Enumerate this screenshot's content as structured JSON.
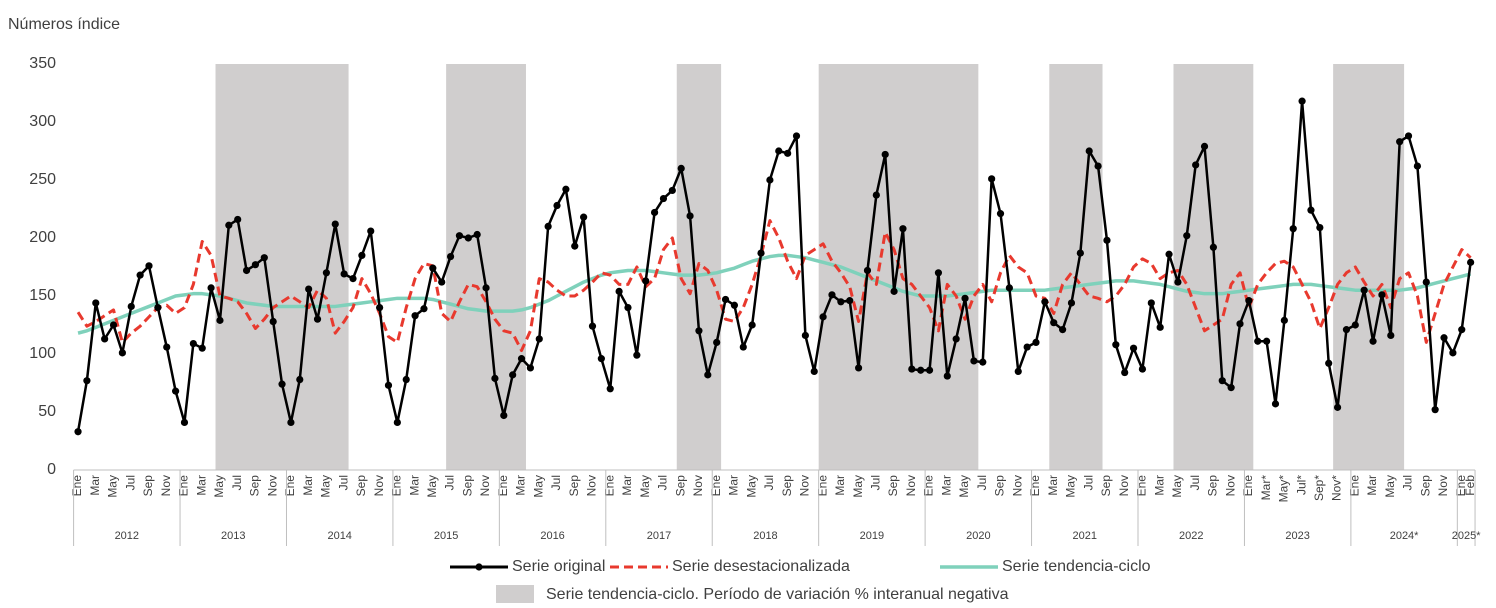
{
  "chart_data": {
    "type": "line",
    "y_label": "Números índice",
    "ylim": [
      0,
      350
    ],
    "yticks": [
      0,
      50,
      100,
      150,
      200,
      250,
      300,
      350
    ],
    "grid": false,
    "categories": [
      "Ene",
      null,
      "Mar",
      null,
      "May",
      null,
      "Jul",
      null,
      "Sep",
      null,
      "Nov",
      null,
      "Ene",
      null,
      "Mar",
      null,
      "May",
      null,
      "Jul",
      null,
      "Sep",
      null,
      "Nov",
      null,
      "Ene",
      null,
      "Mar",
      null,
      "May",
      null,
      "Jul",
      null,
      "Sep",
      null,
      "Nov",
      null,
      "Ene",
      null,
      "Mar",
      null,
      "May",
      null,
      "Jul",
      null,
      "Sep",
      null,
      "Nov",
      null,
      "Ene",
      null,
      "Mar",
      null,
      "May",
      null,
      "Jul",
      null,
      "Sep",
      null,
      "Nov",
      null,
      "Ene",
      null,
      "Mar",
      null,
      "May",
      null,
      "Jul",
      null,
      "Sep",
      null,
      "Nov",
      null,
      "Ene",
      null,
      "Mar",
      null,
      "May",
      null,
      "Jul",
      null,
      "Sep",
      null,
      "Nov",
      null,
      "Ene",
      null,
      "Mar",
      null,
      "May",
      null,
      "Jul",
      null,
      "Sep",
      null,
      "Nov",
      null,
      "Ene",
      null,
      "Mar",
      null,
      "May",
      null,
      "Jul",
      null,
      "Sep",
      null,
      "Nov",
      null,
      "Ene",
      null,
      "Mar",
      null,
      "May",
      null,
      "Jul",
      null,
      "Sep",
      null,
      "Nov",
      null,
      "Ene",
      null,
      "Mar",
      null,
      "May",
      null,
      "Jul",
      null,
      "Sep",
      null,
      "Nov",
      null,
      "Ene",
      null,
      "Mar*",
      null,
      "May*",
      null,
      "Jul*",
      null,
      "Sep*",
      null,
      "Nov*",
      null,
      "Ene",
      null,
      "Mar",
      null,
      "May",
      null,
      "Jul",
      null,
      "Sep",
      null,
      "Nov",
      null,
      "Ene",
      "Feb"
    ],
    "years": [
      "2012",
      "2013",
      "2014",
      "2015",
      "2016",
      "2017",
      "2018",
      "2019",
      "2020",
      "2021",
      "2022",
      "2023",
      "2024*",
      "2025*"
    ],
    "shaded_periods": [
      [
        16,
        30
      ],
      [
        42,
        50
      ],
      [
        68,
        72
      ],
      [
        84,
        101
      ],
      [
        110,
        115
      ],
      [
        124,
        132
      ],
      [
        142,
        149
      ]
    ],
    "shaded_color": "#d0cece",
    "shaded_label": "Serie tendencia-ciclo. Período de variación % interanual negativa",
    "series": [
      {
        "name": "Serie original",
        "color": "#000000",
        "style": "solid-markers",
        "values": [
          33,
          77,
          144,
          113,
          125,
          101,
          141,
          168,
          176,
          140,
          106,
          68,
          41,
          109,
          105,
          157,
          129,
          211,
          216,
          172,
          177,
          183,
          128,
          74,
          41,
          78,
          156,
          130,
          170,
          212,
          169,
          165,
          185,
          206,
          140,
          73,
          41,
          78,
          133,
          139,
          174,
          162,
          184,
          202,
          200,
          203,
          157,
          79,
          47,
          82,
          96,
          88,
          113,
          210,
          228,
          242,
          193,
          218,
          124,
          96,
          70,
          154,
          140,
          99,
          163,
          222,
          234,
          241,
          260,
          219,
          120,
          82,
          110,
          147,
          142,
          106,
          125,
          187,
          250,
          275,
          273,
          288,
          116,
          85,
          132,
          151,
          145,
          146,
          88,
          172,
          237,
          272,
          154,
          208,
          87,
          86,
          86,
          170,
          81,
          113,
          148,
          94,
          93,
          251,
          221,
          157,
          85,
          106,
          110,
          145,
          127,
          121,
          144,
          187,
          275,
          262,
          198,
          108,
          84,
          105,
          87,
          144,
          123,
          186,
          162,
          202,
          263,
          279,
          192,
          77,
          71,
          126,
          146,
          111,
          111,
          57,
          129,
          208,
          318,
          224,
          209,
          92,
          54,
          121,
          125,
          155,
          111,
          151,
          116,
          283,
          288,
          262,
          162,
          52,
          114,
          101,
          121,
          179
        ]
      },
      {
        "name": "Serie desestacionalizada",
        "color": "#e8392e",
        "style": "dashed",
        "values": [
          136,
          124,
          128,
          133,
          138,
          110,
          118,
          124,
          132,
          140,
          142,
          135,
          140,
          160,
          197,
          185,
          150,
          148,
          145,
          135,
          122,
          130,
          140,
          145,
          150,
          145,
          140,
          155,
          148,
          118,
          128,
          140,
          165,
          152,
          135,
          115,
          110,
          140,
          165,
          178,
          176,
          135,
          128,
          145,
          160,
          158,
          145,
          130,
          120,
          118,
          103,
          120,
          165,
          162,
          155,
          150,
          150,
          155,
          162,
          170,
          168,
          160,
          160,
          175,
          158,
          165,
          190,
          200,
          165,
          152,
          178,
          172,
          155,
          130,
          128,
          140,
          160,
          185,
          215,
          200,
          180,
          165,
          185,
          190,
          195,
          180,
          170,
          158,
          128,
          170,
          160,
          205,
          190,
          165,
          160,
          150,
          140,
          120,
          160,
          150,
          130,
          150,
          160,
          145,
          170,
          185,
          175,
          170,
          150,
          148,
          135,
          160,
          170,
          160,
          150,
          148,
          145,
          150,
          160,
          175,
          182,
          178,
          165,
          170,
          172,
          160,
          140,
          120,
          125,
          130,
          160,
          170,
          140,
          160,
          170,
          178,
          180,
          175,
          160,
          145,
          122,
          140,
          160,
          170,
          175,
          162,
          150,
          160,
          140,
          165,
          170,
          150,
          110,
          135,
          160,
          175,
          190,
          183
        ]
      },
      {
        "name": "Serie tendencia-ciclo",
        "color": "#7fd1bb",
        "style": "thick",
        "values": [
          118,
          120,
          123,
          126,
          129,
          132,
          135,
          138,
          141,
          144,
          147,
          150,
          151,
          152,
          152,
          151,
          150,
          148,
          146,
          144,
          143,
          142,
          141,
          141,
          141,
          141,
          141,
          141,
          141,
          141,
          142,
          143,
          144,
          145,
          146,
          147,
          148,
          148,
          148,
          148,
          147,
          145,
          143,
          141,
          139,
          138,
          137,
          137,
          137,
          137,
          138,
          140,
          143,
          146,
          150,
          154,
          158,
          162,
          165,
          168,
          170,
          171,
          172,
          172,
          172,
          171,
          170,
          169,
          168,
          168,
          168,
          169,
          170,
          172,
          174,
          177,
          180,
          182,
          184,
          185,
          185,
          184,
          183,
          181,
          179,
          177,
          175,
          172,
          169,
          166,
          163,
          160,
          157,
          154,
          152,
          150,
          150,
          150,
          150,
          151,
          152,
          153,
          154,
          155,
          155,
          155,
          155,
          155,
          155,
          155,
          156,
          157,
          158,
          159,
          160,
          161,
          162,
          163,
          163,
          163,
          162,
          161,
          160,
          158,
          156,
          154,
          153,
          152,
          152,
          152,
          153,
          154,
          155,
          156,
          157,
          158,
          159,
          160,
          160,
          160,
          159,
          158,
          157,
          156,
          155,
          155,
          155,
          155,
          155,
          155,
          156,
          157,
          159,
          161,
          163,
          165,
          167,
          169
        ]
      }
    ]
  }
}
